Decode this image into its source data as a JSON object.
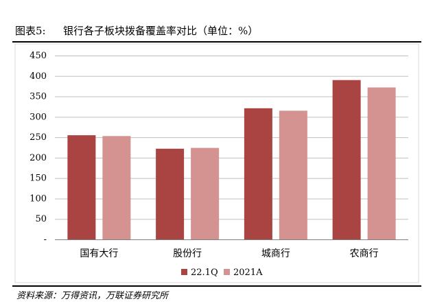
{
  "figure": {
    "label": "图表5:",
    "title": "银行各子板块拨备覆盖率对比（单位：%）",
    "source": "资料来源：万得资讯，万联证券研究所"
  },
  "chart_data": {
    "type": "bar",
    "categories": [
      "国有大行",
      "股份行",
      "城商行",
      "农商行"
    ],
    "series": [
      {
        "name": "22.1Q",
        "values": [
          255,
          222,
          321,
          390
        ],
        "color": "#a94442"
      },
      {
        "name": "2021A",
        "values": [
          253,
          224,
          315,
          372
        ],
        "color": "#d49391"
      }
    ],
    "ylim": [
      0,
      450
    ],
    "yticks": [
      "-",
      "50",
      "100",
      "150",
      "200",
      "250",
      "300",
      "350",
      "400",
      "450"
    ],
    "grid": true,
    "legend": "bottom",
    "xlabel": "",
    "ylabel": ""
  }
}
